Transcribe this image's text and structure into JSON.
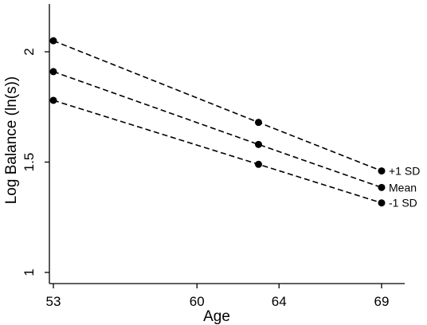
{
  "chart_data": {
    "type": "line",
    "xlabel": "Age",
    "ylabel": "Log Balance (ln(s))",
    "x": [
      53,
      63,
      69
    ],
    "xticks": [
      53,
      60,
      64,
      69
    ],
    "yticks": [
      1,
      1.5,
      2
    ],
    "xlim": [
      53,
      69
    ],
    "ylim": [
      1,
      2.2
    ],
    "grid": false,
    "legend": "none",
    "series": [
      {
        "name": "+1 SD",
        "values": [
          2.05,
          1.68,
          1.46
        ]
      },
      {
        "name": "Mean",
        "values": [
          1.91,
          1.58,
          1.385
        ]
      },
      {
        "name": "-1 SD",
        "values": [
          1.78,
          1.49,
          1.315
        ]
      }
    ],
    "line_color": "#000000",
    "line_style": "dashed"
  }
}
